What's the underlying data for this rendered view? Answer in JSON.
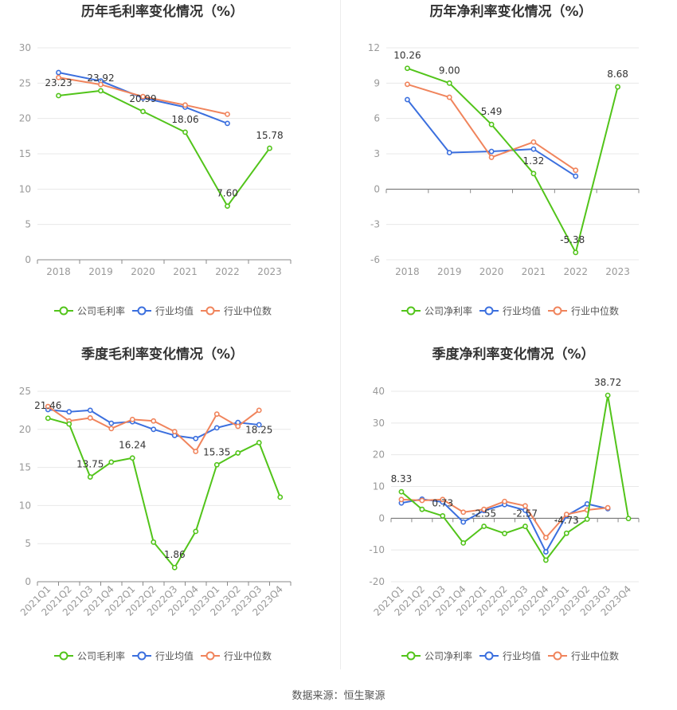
{
  "colors": {
    "company": "#52c41a",
    "industry_avg": "#3b6fde",
    "industry_median": "#f0845c",
    "grid": "#e8e8e8",
    "axis_text": "#999999",
    "label_text": "#333333"
  },
  "legend_labels": {
    "gross_company": "公司毛利率",
    "net_company": "公司净利率",
    "industry_avg": "行业均值",
    "industry_median": "行业中位数"
  },
  "source": "数据来源：恒生聚源",
  "chart_data": [
    {
      "id": "annual-gross",
      "type": "line",
      "title": "历年毛利率变化情况（%）",
      "categories": [
        "2018",
        "2019",
        "2020",
        "2021",
        "2022",
        "2023"
      ],
      "ylim": [
        0,
        30
      ],
      "yticks": [
        0,
        5,
        10,
        15,
        20,
        25,
        30
      ],
      "ytick_labels": [
        "0",
        "5",
        "10",
        "15",
        "20",
        "25",
        "30"
      ],
      "grid": true,
      "legend_position": "bottom",
      "series": [
        {
          "name": "公司毛利率",
          "key": "company",
          "values": [
            23.23,
            23.92,
            20.99,
            18.06,
            7.6,
            15.78
          ],
          "labels": [
            "23.23",
            "23.92",
            "20.99",
            "18.06",
            "7.60",
            "15.78"
          ]
        },
        {
          "name": "行业均值",
          "key": "industry_avg",
          "values": [
            26.5,
            25.3,
            22.9,
            21.6,
            19.3,
            null
          ]
        },
        {
          "name": "行业中位数",
          "key": "industry_median",
          "values": [
            25.8,
            24.8,
            23.1,
            21.9,
            20.6,
            null
          ]
        }
      ]
    },
    {
      "id": "annual-net",
      "type": "line",
      "title": "历年净利率变化情况（%）",
      "categories": [
        "2018",
        "2019",
        "2020",
        "2021",
        "2022",
        "2023"
      ],
      "ylim": [
        -6,
        12
      ],
      "yticks": [
        -6,
        -3,
        0,
        3,
        6,
        9,
        12
      ],
      "ytick_labels": [
        "-6",
        "-3",
        "0",
        "3",
        "6",
        "9",
        "12"
      ],
      "grid": true,
      "legend_position": "bottom",
      "series": [
        {
          "name": "公司净利率",
          "key": "company",
          "values": [
            10.26,
            9.0,
            5.49,
            1.32,
            -5.38,
            8.68
          ],
          "labels": [
            "10.26",
            "9.00",
            "5.49",
            "1.32",
            "-5.38",
            "8.68"
          ]
        },
        {
          "name": "行业均值",
          "key": "industry_avg",
          "values": [
            7.6,
            3.1,
            3.2,
            3.4,
            1.1,
            null
          ]
        },
        {
          "name": "行业中位数",
          "key": "industry_median",
          "values": [
            8.9,
            7.8,
            2.7,
            4.0,
            1.6,
            null
          ]
        }
      ]
    },
    {
      "id": "quarterly-gross",
      "type": "line",
      "title": "季度毛利率变化情况（%）",
      "categories": [
        "2021Q1",
        "2021Q2",
        "2021Q3",
        "2021Q4",
        "2022Q1",
        "2022Q2",
        "2022Q3",
        "2022Q4",
        "2023Q1",
        "2023Q2",
        "2023Q3",
        "2023Q4"
      ],
      "ylim": [
        0,
        25
      ],
      "yticks": [
        0,
        5,
        10,
        15,
        20,
        25
      ],
      "ytick_labels": [
        "0",
        "5",
        "10",
        "15",
        "20",
        "25"
      ],
      "grid": true,
      "legend_position": "bottom",
      "series": [
        {
          "name": "公司毛利率",
          "key": "company",
          "values": [
            21.46,
            20.7,
            13.75,
            15.7,
            16.24,
            5.2,
            1.86,
            6.6,
            15.35,
            16.9,
            18.25,
            11.1
          ],
          "labels": [
            "21.46",
            "",
            "13.75",
            "",
            "16.24",
            "",
            "1.86",
            "",
            "15.35",
            "",
            "18.25",
            ""
          ]
        },
        {
          "name": "行业均值",
          "key": "industry_avg",
          "values": [
            22.6,
            22.3,
            22.5,
            20.8,
            21.0,
            20.0,
            19.2,
            18.8,
            20.2,
            20.9,
            20.6,
            null
          ]
        },
        {
          "name": "行业中位数",
          "key": "industry_median",
          "values": [
            23.0,
            21.1,
            21.5,
            20.1,
            21.3,
            21.1,
            19.7,
            17.1,
            22.0,
            20.4,
            22.5,
            null
          ]
        }
      ]
    },
    {
      "id": "quarterly-net",
      "type": "line",
      "title": "季度净利率变化情况（%）",
      "categories": [
        "2021Q1",
        "2021Q2",
        "2021Q3",
        "2021Q4",
        "2022Q1",
        "2022Q2",
        "2022Q3",
        "2022Q4",
        "2023Q1",
        "2023Q2",
        "2023Q3",
        "2023Q4"
      ],
      "ylim": [
        -20,
        40
      ],
      "yticks": [
        -20,
        -10,
        0,
        10,
        20,
        30,
        40
      ],
      "ytick_labels": [
        "-20",
        "-10",
        "0",
        "10",
        "20",
        "30",
        "40"
      ],
      "grid": true,
      "legend_position": "bottom",
      "series": [
        {
          "name": "公司净利率",
          "key": "company",
          "values": [
            8.33,
            2.8,
            0.73,
            -7.8,
            -2.55,
            -4.8,
            -2.57,
            -13.2,
            -4.73,
            -0.3,
            38.72,
            -0.1
          ],
          "labels": [
            "8.33",
            "",
            "0.73",
            "",
            "-2.55",
            "",
            "-2.57",
            "",
            "-4.73",
            "",
            "38.72",
            ""
          ]
        },
        {
          "name": "行业均值",
          "key": "industry_avg",
          "values": [
            4.8,
            6.0,
            5.1,
            -1.2,
            2.4,
            4.3,
            2.5,
            -10.6,
            0.8,
            4.5,
            3.0,
            null
          ]
        },
        {
          "name": "行业中位数",
          "key": "industry_median",
          "values": [
            5.9,
            5.6,
            5.9,
            1.9,
            2.8,
            5.3,
            3.9,
            -6.1,
            1.2,
            2.6,
            3.3,
            null
          ]
        }
      ]
    }
  ]
}
